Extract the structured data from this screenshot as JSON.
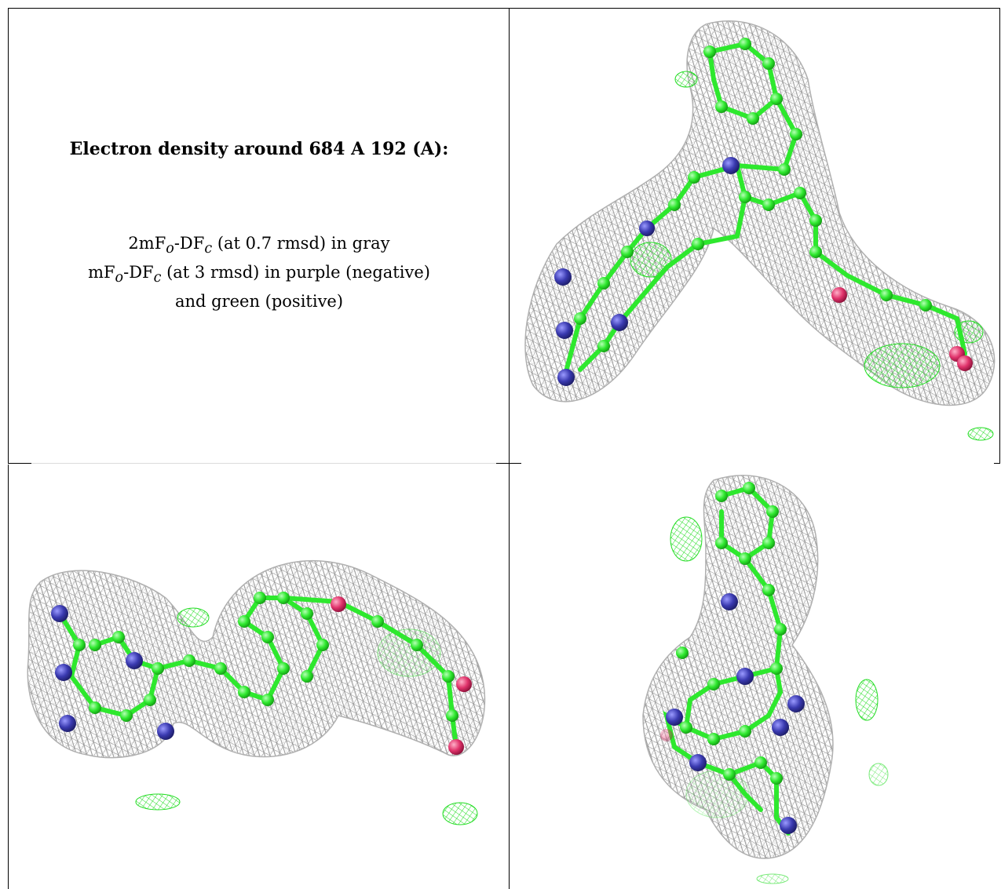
{
  "figure": {
    "title": "Electron density around 684 A 192 (A):",
    "legend": [
      {
        "main": "2mF",
        "sub1": "o",
        "mid": "-DF",
        "sub2": "c",
        "rest": " (at 0.7 rmsd) in gray"
      },
      {
        "main": "mF",
        "sub1": "o",
        "mid": "-DF",
        "sub2": "c",
        "rest": " (at 3 rmsd) in purple (negative)"
      },
      {
        "text": "and green (positive)"
      }
    ]
  },
  "colors": {
    "mesh_gray": "#9a9a9a",
    "carbon_green": "#2ee82e",
    "nitrogen_blue": "#3a3ab0",
    "oxygen_pink": "#e0336b",
    "positive_density_green": "#22dd22"
  },
  "panels": [
    {
      "name": "view-top-right",
      "icon": "electron-density-mesh-view"
    },
    {
      "name": "view-bottom-left",
      "icon": "electron-density-mesh-view"
    },
    {
      "name": "view-bottom-right",
      "icon": "electron-density-mesh-view"
    }
  ]
}
